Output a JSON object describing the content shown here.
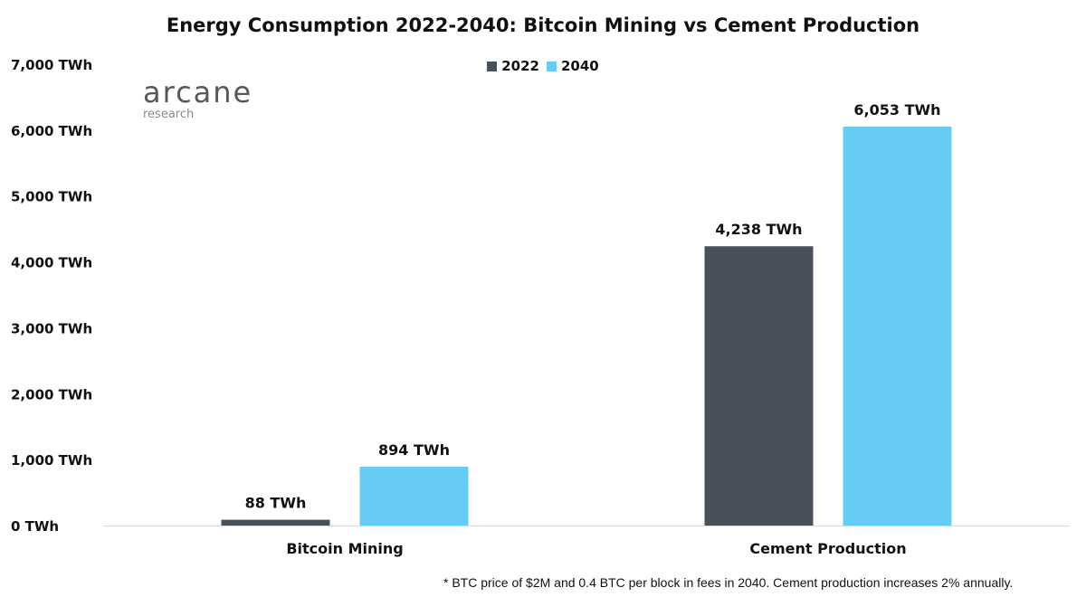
{
  "chart_data": {
    "type": "bar",
    "title": "Energy Consumption 2022-2040: Bitcoin Mining vs Cement Production",
    "categories": [
      "Bitcoin Mining",
      "Cement Production"
    ],
    "series": [
      {
        "name": "2022",
        "values": [
          88,
          4238
        ],
        "labels": [
          "88 TWh",
          "4,238 TWh"
        ],
        "color": "#4a5059"
      },
      {
        "name": "2040",
        "values": [
          894,
          6053
        ],
        "labels": [
          "894 TWh",
          "6,053 TWh"
        ],
        "color": "#66ccf5"
      }
    ],
    "ylim": [
      0,
      7000
    ],
    "yticks": [
      0,
      1000,
      2000,
      3000,
      4000,
      5000,
      6000,
      7000
    ],
    "ytick_labels": [
      "0 TWh",
      "1,000 TWh",
      "2,000 TWh",
      "3,000 TWh",
      "4,000 TWh",
      "5,000 TWh",
      "6,000 TWh",
      "7,000 TWh"
    ],
    "grid": false,
    "legend_position": "top-center",
    "xlabel": "",
    "ylabel": ""
  },
  "logo": {
    "brand": "arcane",
    "sub": "research"
  },
  "footnote": "* BTC price of $2M and 0.4 BTC per block in fees in 2040. Cement production increases 2% annually."
}
